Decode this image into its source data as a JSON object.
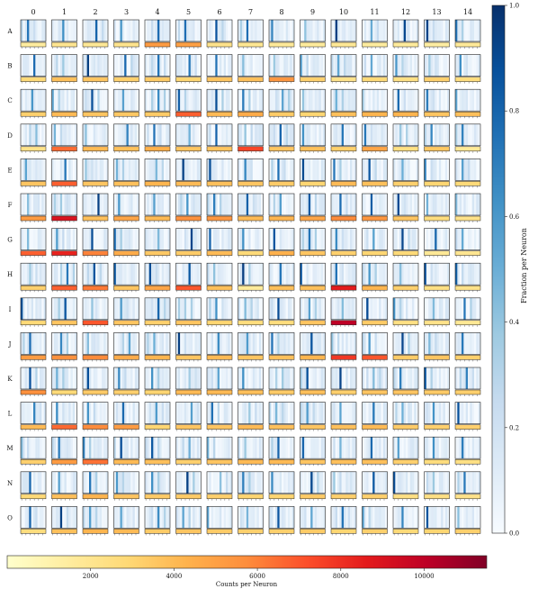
{
  "chart_data": {
    "type": "heatmap",
    "title": "",
    "columns": [
      "0",
      "1",
      "2",
      "3",
      "4",
      "5",
      "6",
      "7",
      "8",
      "9",
      "10",
      "11",
      "12",
      "13",
      "14"
    ],
    "rows": [
      "A",
      "B",
      "C",
      "D",
      "E",
      "F",
      "G",
      "H",
      "I",
      "J",
      "K",
      "L",
      "M",
      "N",
      "O"
    ],
    "bins_per_cell": 12,
    "fraction_colorbar": {
      "label": "Fraction per Neuron",
      "range": [
        0.0,
        1.0
      ],
      "ticks": [
        "0.0",
        "0.2",
        "0.4",
        "0.6",
        "0.8",
        "1.0"
      ],
      "colormap": "Blues"
    },
    "counts_colorbar": {
      "label": "Counts per Neuron",
      "range": [
        0,
        11500
      ],
      "ticks": [
        "2000",
        "4000",
        "6000",
        "8000",
        "10000"
      ],
      "colormap": "YlOrRd"
    },
    "counts_per_neuron": [
      [
        1500,
        2000,
        1800,
        2100,
        5200,
        5000,
        2200,
        1900,
        1700,
        1600,
        1800,
        1500,
        1600,
        1400,
        1700
      ],
      [
        2800,
        3800,
        3600,
        3200,
        3400,
        3000,
        3600,
        3800,
        5400,
        3200,
        2200,
        2800,
        2400,
        3200,
        2600
      ],
      [
        3200,
        4000,
        3600,
        3500,
        3400,
        6800,
        4000,
        4600,
        3400,
        3000,
        3800,
        4200,
        4200,
        3600,
        3800
      ],
      [
        2200,
        6500,
        4000,
        3800,
        4400,
        3600,
        3600,
        7400,
        3600,
        3800,
        3200,
        4800,
        2400,
        3500,
        1700
      ],
      [
        3600,
        6800,
        3600,
        3800,
        4200,
        4000,
        3800,
        3600,
        3400,
        3000,
        4000,
        3800,
        3200,
        3000,
        2800
      ],
      [
        5200,
        9000,
        3800,
        4800,
        4000,
        5600,
        5400,
        4000,
        4200,
        4800,
        5800,
        5400,
        3600,
        2600,
        2200
      ],
      [
        6800,
        8400,
        6000,
        4600,
        3500,
        3400,
        4000,
        2800,
        4400,
        3600,
        3200,
        3000,
        2800,
        1800,
        2000
      ],
      [
        3200,
        6800,
        6200,
        3600,
        4800,
        7000,
        3800,
        1600,
        3800,
        3800,
        8600,
        4200,
        3200,
        2400,
        2200
      ],
      [
        2800,
        3600,
        7000,
        3600,
        3200,
        3600,
        3000,
        2600,
        2600,
        3600,
        10000,
        3400,
        2400,
        2200,
        1800
      ],
      [
        5200,
        5600,
        5800,
        4600,
        4200,
        3600,
        4000,
        3600,
        3800,
        4200,
        7800,
        7000,
        3400,
        3600,
        3200
      ],
      [
        5600,
        2800,
        3400,
        3200,
        3000,
        4000,
        4000,
        3800,
        3400,
        3800,
        3200,
        3600,
        3600,
        3400,
        3200
      ],
      [
        4000,
        6600,
        5800,
        5200,
        3000,
        3600,
        3600,
        4000,
        3800,
        3600,
        3800,
        4000,
        3400,
        3200,
        3200
      ],
      [
        3200,
        5200,
        6400,
        4000,
        3800,
        3200,
        3600,
        4000,
        4000,
        3600,
        3800,
        3800,
        3200,
        2600,
        2400
      ],
      [
        2800,
        3800,
        4200,
        3600,
        3400,
        3400,
        3200,
        3000,
        3000,
        3400,
        3200,
        3200,
        2400,
        2400,
        2200
      ],
      [
        2600,
        3800,
        4200,
        4000,
        3400,
        3600,
        3400,
        3200,
        3200,
        3400,
        3000,
        3200,
        2800,
        3000,
        3200
      ]
    ]
  }
}
